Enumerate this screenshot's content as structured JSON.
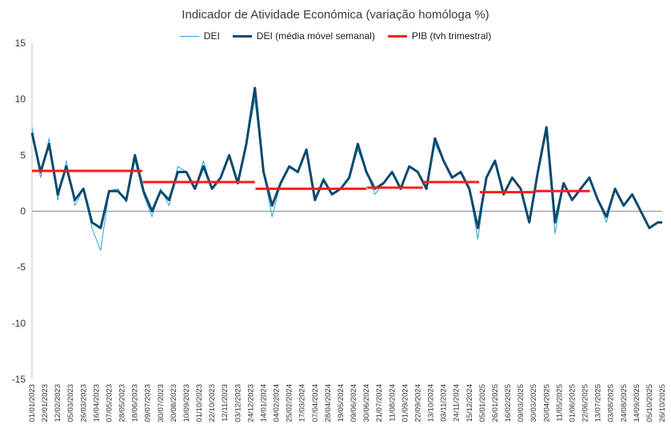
{
  "chart_data": {
    "type": "line",
    "title": "Indicador de Atividade Económica (variação homóloga %)",
    "xlabel": "",
    "ylabel": "",
    "ylim": [
      -15,
      15
    ],
    "y_ticks": [
      15,
      10,
      5,
      0,
      -5,
      -10,
      -15
    ],
    "x_range": [
      "2023-01-01",
      "2025-10-26"
    ],
    "x_tick_labels": [
      "01/01/2023",
      "22/01/2023",
      "12/02/2023",
      "05/03/2023",
      "26/03/2023",
      "16/04/2023",
      "07/05/2023",
      "28/05/2023",
      "18/06/2023",
      "09/07/2023",
      "30/07/2023",
      "20/08/2023",
      "10/09/2023",
      "01/10/2023",
      "22/10/2023",
      "12/11/2023",
      "03/12/2023",
      "24/12/2023",
      "14/01/2024",
      "04/02/2024",
      "25/02/2024",
      "17/03/2024",
      "07/04/2024",
      "28/04/2024",
      "19/05/2024",
      "09/06/2024",
      "30/06/2024",
      "21/07/2024",
      "11/08/2024",
      "01/09/2024",
      "22/09/2024",
      "13/10/2024",
      "03/11/2024",
      "24/11/2024",
      "15/12/2024",
      "05/01/2025",
      "26/01/2025",
      "16/02/2025",
      "09/03/2025",
      "30/03/2025",
      "20/04/2025",
      "11/05/2025",
      "01/06/2025",
      "22/06/2025",
      "13/07/2025",
      "03/08/2025",
      "24/08/2025",
      "14/09/2025",
      "05/10/2025",
      "26/10/2025"
    ],
    "grid": false,
    "legend_position": "top",
    "series": [
      {
        "name": "DEI",
        "color": "#2ea3d0",
        "width": 1,
        "x": [
          "2023-01-01",
          "2023-01-15",
          "2023-01-29",
          "2023-02-12",
          "2023-02-26",
          "2023-03-12",
          "2023-03-26",
          "2023-04-09",
          "2023-04-23",
          "2023-05-07",
          "2023-05-21",
          "2023-06-04",
          "2023-06-18",
          "2023-07-02",
          "2023-07-16",
          "2023-07-30",
          "2023-08-13",
          "2023-08-27",
          "2023-09-10",
          "2023-09-24",
          "2023-10-08",
          "2023-10-22",
          "2023-11-05",
          "2023-11-19",
          "2023-12-03",
          "2023-12-17",
          "2023-12-31",
          "2024-01-14",
          "2024-01-28",
          "2024-02-11",
          "2024-02-25",
          "2024-03-10",
          "2024-03-24",
          "2024-04-07",
          "2024-04-21",
          "2024-05-05",
          "2024-05-19",
          "2024-06-02",
          "2024-06-16",
          "2024-06-30",
          "2024-07-14",
          "2024-07-28",
          "2024-08-11",
          "2024-08-25",
          "2024-09-08",
          "2024-09-22",
          "2024-10-06",
          "2024-10-20",
          "2024-11-03",
          "2024-11-17",
          "2024-12-01",
          "2024-12-15",
          "2024-12-29",
          "2025-01-12",
          "2025-01-26",
          "2025-02-09",
          "2025-02-23",
          "2025-03-09",
          "2025-03-23",
          "2025-04-06",
          "2025-04-20",
          "2025-05-04",
          "2025-05-18",
          "2025-06-01",
          "2025-06-15",
          "2025-06-29",
          "2025-07-13",
          "2025-07-27",
          "2025-08-10",
          "2025-08-24",
          "2025-09-07",
          "2025-09-21",
          "2025-10-05",
          "2025-10-19",
          "2025-10-26"
        ],
        "values": [
          7.5,
          3.0,
          6.5,
          1.0,
          4.5,
          0.5,
          2.0,
          -1.5,
          -3.5,
          1.8,
          2.0,
          0.8,
          4.5,
          1.5,
          -0.5,
          2.0,
          0.5,
          4.0,
          3.5,
          2.0,
          4.5,
          2.0,
          3.0,
          5.0,
          2.5,
          6.0,
          10.0,
          3.5,
          -0.5,
          2.5,
          4.0,
          3.5,
          5.5,
          1.0,
          3.0,
          1.5,
          2.0,
          3.0,
          5.5,
          3.5,
          1.5,
          2.5,
          3.5,
          2.0,
          4.0,
          3.5,
          2.0,
          6.0,
          4.5,
          3.0,
          3.5,
          2.0,
          -2.5,
          3.0,
          4.5,
          1.5,
          3.0,
          2.0,
          -1.0,
          3.5,
          7.0,
          -2.0,
          2.5,
          1.0,
          2.0,
          3.0,
          1.0,
          -1.0,
          2.0,
          0.5,
          1.5,
          0.0,
          -1.5,
          -1.0,
          -1.0
        ]
      },
      {
        "name": "DEI (média móvel semanal)",
        "color": "#0b4a6e",
        "width": 3,
        "x": [
          "2023-01-01",
          "2023-01-15",
          "2023-01-29",
          "2023-02-12",
          "2023-02-26",
          "2023-03-12",
          "2023-03-26",
          "2023-04-09",
          "2023-04-23",
          "2023-05-07",
          "2023-05-21",
          "2023-06-04",
          "2023-06-18",
          "2023-07-02",
          "2023-07-16",
          "2023-07-30",
          "2023-08-13",
          "2023-08-27",
          "2023-09-10",
          "2023-09-24",
          "2023-10-08",
          "2023-10-22",
          "2023-11-05",
          "2023-11-19",
          "2023-12-03",
          "2023-12-17",
          "2023-12-31",
          "2024-01-14",
          "2024-01-28",
          "2024-02-11",
          "2024-02-25",
          "2024-03-10",
          "2024-03-24",
          "2024-04-07",
          "2024-04-21",
          "2024-05-05",
          "2024-05-19",
          "2024-06-02",
          "2024-06-16",
          "2024-06-30",
          "2024-07-14",
          "2024-07-28",
          "2024-08-11",
          "2024-08-25",
          "2024-09-08",
          "2024-09-22",
          "2024-10-06",
          "2024-10-20",
          "2024-11-03",
          "2024-11-17",
          "2024-12-01",
          "2024-12-15",
          "2024-12-29",
          "2025-01-12",
          "2025-01-26",
          "2025-02-09",
          "2025-02-23",
          "2025-03-09",
          "2025-03-23",
          "2025-04-06",
          "2025-04-20",
          "2025-05-04",
          "2025-05-18",
          "2025-06-01",
          "2025-06-15",
          "2025-06-29",
          "2025-07-13",
          "2025-07-27",
          "2025-08-10",
          "2025-08-24",
          "2025-09-07",
          "2025-09-21",
          "2025-10-05",
          "2025-10-19",
          "2025-10-26"
        ],
        "values": [
          7.0,
          3.5,
          6.0,
          1.5,
          4.0,
          1.0,
          2.0,
          -1.0,
          -1.5,
          1.8,
          1.8,
          1.0,
          5.0,
          1.8,
          0.0,
          1.8,
          1.0,
          3.5,
          3.5,
          2.0,
          4.0,
          2.0,
          3.0,
          5.0,
          2.5,
          6.0,
          11.0,
          3.5,
          0.5,
          2.5,
          4.0,
          3.5,
          5.5,
          1.0,
          2.8,
          1.5,
          2.0,
          3.0,
          6.0,
          3.5,
          2.0,
          2.5,
          3.5,
          2.0,
          4.0,
          3.5,
          2.0,
          6.5,
          4.5,
          3.0,
          3.5,
          2.0,
          -1.5,
          3.0,
          4.5,
          1.5,
          3.0,
          2.0,
          -1.0,
          3.5,
          7.5,
          -1.0,
          2.5,
          1.0,
          2.0,
          3.0,
          1.0,
          -0.5,
          2.0,
          0.5,
          1.5,
          0.0,
          -1.5,
          -1.0,
          -1.0
        ]
      },
      {
        "name": "PIB (tvh trimestral)",
        "color": "#ff1a1a",
        "width": 3,
        "segments": [
          {
            "start": "2023-01-01",
            "end": "2023-06-30",
            "value": 3.6
          },
          {
            "start": "2023-07-01",
            "end": "2023-12-31",
            "value": 2.6
          },
          {
            "start": "2024-01-01",
            "end": "2024-06-30",
            "value": 2.0
          },
          {
            "start": "2024-07-01",
            "end": "2024-09-30",
            "value": 2.1
          },
          {
            "start": "2024-10-01",
            "end": "2024-12-31",
            "value": 2.6
          },
          {
            "start": "2025-01-01",
            "end": "2025-03-31",
            "value": 1.7
          },
          {
            "start": "2025-04-01",
            "end": "2025-06-30",
            "value": 1.8
          }
        ]
      }
    ]
  }
}
